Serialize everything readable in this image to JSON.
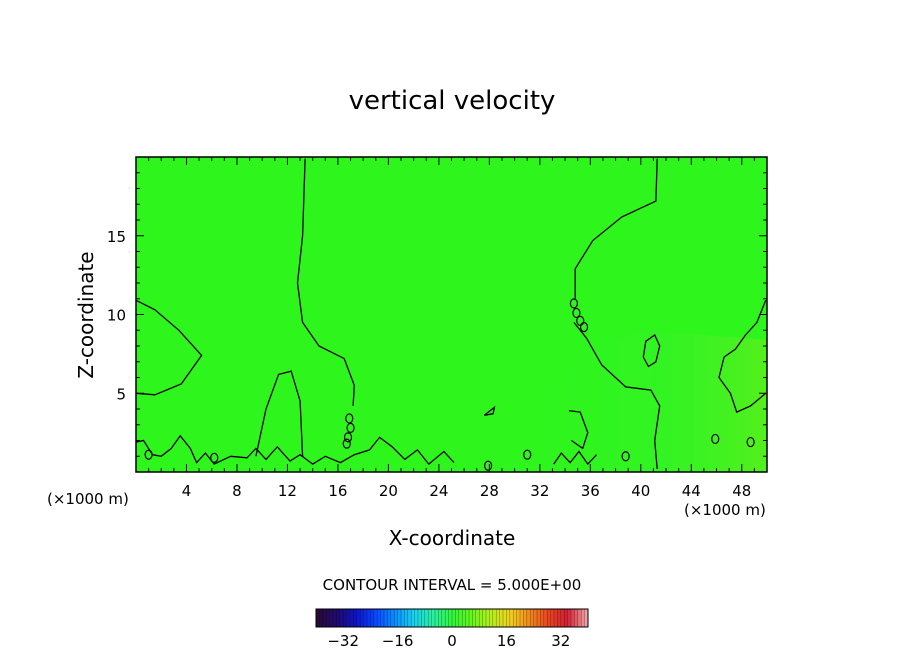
{
  "chart_data": {
    "type": "heatmap",
    "title": "vertical velocity",
    "xlabel": "X-coordinate",
    "ylabel": "Z-coordinate",
    "x_unit": "(×1000 m)",
    "xlim": [
      0,
      50
    ],
    "ylim": [
      0,
      20
    ],
    "x_ticks": [
      4,
      8,
      12,
      16,
      20,
      24,
      28,
      32,
      36,
      40,
      44,
      48
    ],
    "y_ticks": [
      5,
      10,
      15
    ],
    "field_color": "#2ef51c",
    "contour_color": "#000000",
    "contour_interval_text": "CONTOUR INTERVAL = 5.000E+00",
    "colorbar": {
      "range": [
        -40,
        40
      ],
      "ticks": [
        -32,
        -16,
        0,
        16,
        32
      ],
      "colors": [
        "#2a0a3a",
        "#200a6e",
        "#0c14c8",
        "#0a46ff",
        "#0a8cff",
        "#16d2f0",
        "#28f0a0",
        "#30f53c",
        "#64f51e",
        "#b4f01e",
        "#f0d21e",
        "#f08c1e",
        "#e8461e",
        "#d21e32",
        "#f0a0a0"
      ]
    },
    "contours_note": "0 contour lines (interval 5)",
    "contours": [
      [
        [
          13.4,
          19.9
        ],
        [
          13.2,
          15
        ],
        [
          12.8,
          12
        ],
        [
          13.2,
          9.5
        ],
        [
          14.5,
          8
        ],
        [
          16.5,
          7.2
        ],
        [
          17.3,
          5.5
        ],
        [
          17.2,
          4.2
        ]
      ],
      [
        [
          0,
          10.9
        ],
        [
          1.5,
          10.3
        ],
        [
          3.4,
          9
        ],
        [
          5.2,
          7.4
        ],
        [
          3.6,
          5.6
        ],
        [
          1.5,
          4.9
        ],
        [
          0,
          5
        ]
      ],
      [
        [
          9.5,
          1
        ],
        [
          10.3,
          4
        ],
        [
          11.3,
          6.2
        ],
        [
          12.3,
          6.4
        ],
        [
          13,
          4.5
        ],
        [
          13.2,
          1
        ]
      ],
      [
        [
          41.3,
          19.9
        ],
        [
          41.2,
          17.2
        ],
        [
          38.5,
          16.2
        ],
        [
          36.2,
          14.7
        ],
        [
          34.8,
          12.9
        ],
        [
          34.8,
          11
        ]
      ],
      [
        [
          34.7,
          9.5
        ],
        [
          35.7,
          8.5
        ],
        [
          36.9,
          6.8
        ],
        [
          38.8,
          5.4
        ],
        [
          40.8,
          5.2
        ],
        [
          41.5,
          4.2
        ],
        [
          41.1,
          2
        ],
        [
          41.3,
          0.2
        ]
      ],
      [
        [
          40.2,
          7.3
        ],
        [
          40.4,
          8.3
        ],
        [
          41.1,
          8.7
        ],
        [
          41.5,
          8
        ],
        [
          41.2,
          7
        ],
        [
          40.6,
          6.7
        ],
        [
          40.2,
          7.3
        ]
      ],
      [
        [
          49.9,
          10.9
        ],
        [
          49.2,
          9.5
        ],
        [
          48.3,
          8.7
        ],
        [
          47.5,
          7.8
        ],
        [
          46.6,
          7.3
        ],
        [
          46.2,
          6
        ],
        [
          47.1,
          5
        ],
        [
          47.6,
          3.8
        ],
        [
          48.7,
          4.2
        ],
        [
          49.9,
          5
        ]
      ],
      [
        [
          34.3,
          3.9
        ],
        [
          35.2,
          3.8
        ],
        [
          35.8,
          2.5
        ],
        [
          35.4,
          1.5
        ],
        [
          34.5,
          2
        ]
      ],
      [
        [
          27.6,
          3.6
        ],
        [
          28.4,
          4.1
        ],
        [
          28.3,
          3.7
        ],
        [
          27.6,
          3.6
        ]
      ],
      [
        [
          0,
          1.9
        ],
        [
          0.6,
          2
        ],
        [
          1.3,
          1.1
        ],
        [
          2,
          1
        ],
        [
          2.8,
          1.5
        ],
        [
          3.5,
          2.3
        ],
        [
          4.3,
          1.5
        ],
        [
          4.8,
          0.6
        ],
        [
          5.5,
          1.2
        ],
        [
          6.2,
          0.5
        ],
        [
          7.5,
          1
        ],
        [
          8.8,
          0.9
        ],
        [
          9.5,
          1.5
        ],
        [
          10.3,
          0.8
        ],
        [
          11.2,
          1.6
        ],
        [
          12.2,
          0.7
        ],
        [
          13,
          1.1
        ],
        [
          14,
          0.5
        ],
        [
          15,
          1
        ],
        [
          16.2,
          0.6
        ],
        [
          17.3,
          1.1
        ],
        [
          18.5,
          1.4
        ],
        [
          19.3,
          2.2
        ],
        [
          20.3,
          1.6
        ],
        [
          21.3,
          0.8
        ],
        [
          22.3,
          1.4
        ],
        [
          23.2,
          0.5
        ],
        [
          24.4,
          1.3
        ],
        [
          25.2,
          0.6
        ]
      ],
      [
        [
          33.1,
          0.5
        ],
        [
          33.7,
          1.2
        ],
        [
          34.4,
          0.6
        ],
        [
          35.1,
          1.3
        ],
        [
          35.8,
          0.5
        ],
        [
          36.5,
          1.1
        ]
      ]
    ],
    "small_loops": [
      [
        16.9,
        3.4
      ],
      [
        17.0,
        2.8
      ],
      [
        16.8,
        2.2
      ],
      [
        16.7,
        1.8
      ],
      [
        34.7,
        10.7
      ],
      [
        34.9,
        10.1
      ],
      [
        35.2,
        9.6
      ],
      [
        35.5,
        9.2
      ],
      [
        45.9,
        2.1
      ],
      [
        48.7,
        1.9
      ],
      [
        1.0,
        1.1
      ],
      [
        6.2,
        0.9
      ],
      [
        27.9,
        0.4
      ],
      [
        31.0,
        1.1
      ],
      [
        38.8,
        1.0
      ]
    ]
  }
}
